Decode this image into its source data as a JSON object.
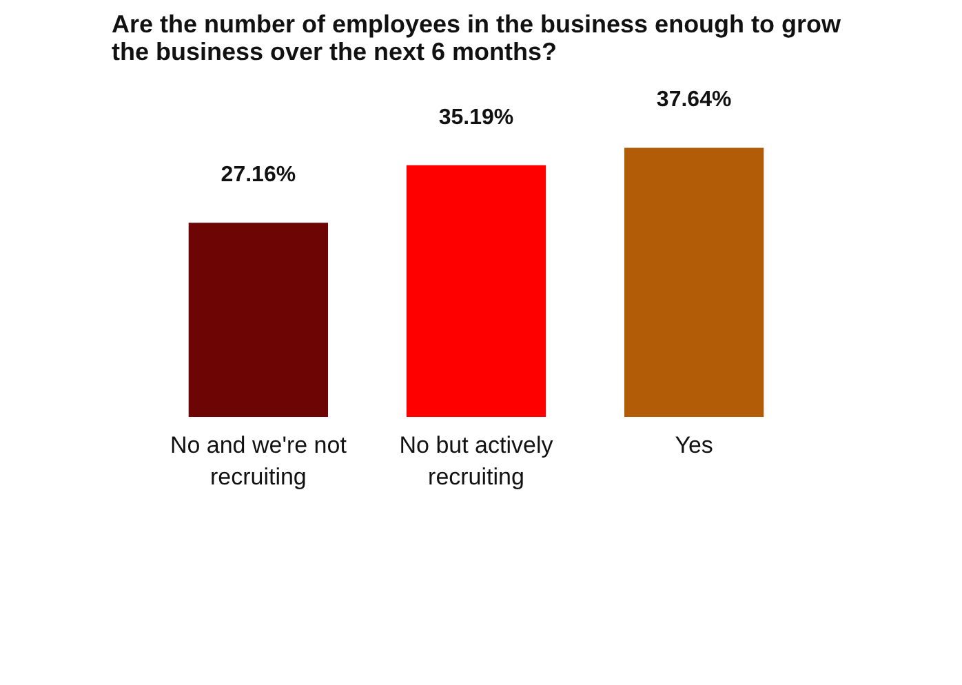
{
  "chart_data": {
    "type": "bar",
    "title": "Are the number of employees in the business enough to grow the business over the next 6 months?",
    "categories": [
      "No and we're not recruiting",
      "No but actively recruiting",
      "Yes"
    ],
    "values": [
      27.16,
      35.19,
      37.64
    ],
    "colors": [
      "#6e0505",
      "#ff0000",
      "#b35c07"
    ],
    "value_labels": [
      "27.16%",
      "35.19%",
      "37.64%"
    ],
    "grid": false
  }
}
